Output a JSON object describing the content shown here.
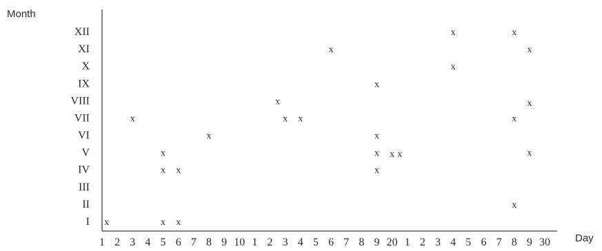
{
  "chart_data": {
    "type": "scatter",
    "marker": "x",
    "marker_color": "#2a2a2a",
    "xlabel": "Day",
    "ylabel": "Month",
    "grid": false,
    "x_tick_labels": [
      "1",
      "2",
      "3",
      "4",
      "5",
      "6",
      "7",
      "8",
      "9",
      "10",
      "1",
      "2",
      "3",
      "4",
      "5",
      "6",
      "7",
      "8",
      "9",
      "20",
      "1",
      "2",
      "3",
      "4",
      "5",
      "6",
      "7",
      "8",
      "9",
      "30"
    ],
    "y_tick_labels": [
      "I",
      "II",
      "III",
      "IV",
      "V",
      "VI",
      "VII",
      "VIII",
      "IX",
      "X",
      "XI",
      "XII"
    ],
    "xlim": [
      1,
      30
    ],
    "ylim": [
      1,
      12
    ],
    "points": [
      {
        "x": 1.3,
        "y": 1
      },
      {
        "x": 5,
        "y": 1
      },
      {
        "x": 6,
        "y": 1
      },
      {
        "x": 28,
        "y": 2
      },
      {
        "x": 5,
        "y": 4
      },
      {
        "x": 6,
        "y": 4
      },
      {
        "x": 19,
        "y": 4
      },
      {
        "x": 5,
        "y": 5
      },
      {
        "x": 19,
        "y": 5
      },
      {
        "x": 20,
        "y": 4.95
      },
      {
        "x": 20.5,
        "y": 4.95
      },
      {
        "x": 29,
        "y": 5
      },
      {
        "x": 8,
        "y": 6
      },
      {
        "x": 19,
        "y": 6
      },
      {
        "x": 3,
        "y": 7
      },
      {
        "x": 13,
        "y": 7
      },
      {
        "x": 14,
        "y": 7
      },
      {
        "x": 28,
        "y": 7
      },
      {
        "x": 12.5,
        "y": 8
      },
      {
        "x": 29,
        "y": 7.9
      },
      {
        "x": 19,
        "y": 9
      },
      {
        "x": 24,
        "y": 10
      },
      {
        "x": 16,
        "y": 11
      },
      {
        "x": 29,
        "y": 11
      },
      {
        "x": 24,
        "y": 12
      },
      {
        "x": 28,
        "y": 12
      }
    ]
  }
}
